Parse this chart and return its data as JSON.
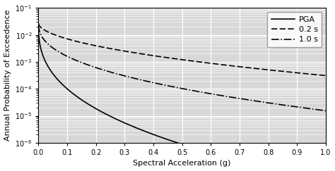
{
  "title": "",
  "xlabel": "Spectral Acceleration (g)",
  "ylabel": "Annual Probability of Exceedence",
  "xlim": [
    0.0,
    1.0
  ],
  "ylim_log": [
    -6,
    -1
  ],
  "xticks": [
    0.0,
    0.1,
    0.2,
    0.3,
    0.4,
    0.5,
    0.6,
    0.7,
    0.8,
    0.9,
    1.0
  ],
  "yticks_log": [
    -6,
    -5,
    -4,
    -3,
    -2,
    -1
  ],
  "background_color": "#d8d8d8",
  "line_color": "#000000",
  "legend_labels": [
    "PGA",
    "0.2 s",
    "1.0 s"
  ],
  "legend_styles": [
    "solid",
    "dashed",
    "dashdot"
  ],
  "pga_a": 0.028,
  "pga_k": 13.5,
  "pga_p": 0.38,
  "s02_a": 0.028,
  "s02_k": 4.5,
  "s02_p": 0.52,
  "s10_a": 0.028,
  "s10_k": 7.5,
  "s10_p": 0.42,
  "xlabel_fontsize": 8,
  "ylabel_fontsize": 8,
  "tick_fontsize": 7,
  "legend_fontsize": 8
}
